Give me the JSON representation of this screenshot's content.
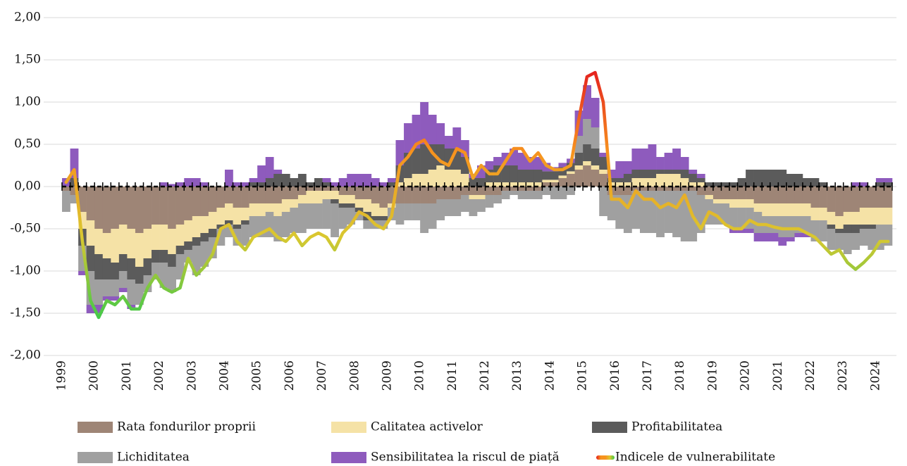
{
  "chart_data": {
    "type": "stacked-bar-line",
    "categories": [
      "1999",
      null,
      null,
      null,
      "2000",
      null,
      null,
      null,
      "2001",
      null,
      null,
      null,
      "2002",
      null,
      null,
      null,
      "2003",
      null,
      null,
      null,
      "2004",
      null,
      null,
      null,
      "2005",
      null,
      null,
      null,
      "2006",
      null,
      null,
      null,
      "2007",
      null,
      null,
      null,
      "2008",
      null,
      null,
      null,
      "2009",
      null,
      null,
      null,
      "2010",
      null,
      null,
      null,
      "2011",
      null,
      null,
      null,
      "2012",
      null,
      null,
      null,
      "2013",
      null,
      null,
      null,
      "2014",
      null,
      null,
      null,
      "2015",
      null,
      null,
      null,
      "2016",
      null,
      null,
      null,
      "2017",
      null,
      null,
      null,
      "2018",
      null,
      null,
      null,
      "2019",
      null,
      null,
      null,
      "2020",
      null,
      null,
      null,
      "2021",
      null,
      null,
      null,
      "2022",
      null,
      null,
      null,
      "2023",
      null,
      null,
      null,
      "2024",
      null
    ],
    "series": [
      {
        "name": "Rata fondurilor proprii",
        "color": "#9e8576",
        "values": [
          -0.05,
          -0.1,
          -0.3,
          -0.4,
          -0.5,
          -0.55,
          -0.5,
          -0.45,
          -0.5,
          -0.55,
          -0.5,
          -0.45,
          -0.45,
          -0.5,
          -0.45,
          -0.4,
          -0.35,
          -0.35,
          -0.3,
          -0.25,
          -0.2,
          -0.25,
          -0.25,
          -0.2,
          -0.2,
          -0.2,
          -0.2,
          -0.15,
          -0.15,
          -0.1,
          -0.05,
          -0.05,
          -0.05,
          -0.05,
          -0.1,
          -0.1,
          -0.15,
          -0.15,
          -0.2,
          -0.25,
          -0.2,
          -0.2,
          -0.2,
          -0.2,
          -0.2,
          -0.2,
          -0.15,
          -0.15,
          -0.15,
          -0.1,
          -0.1,
          -0.1,
          -0.1,
          -0.1,
          -0.05,
          -0.05,
          -0.05,
          -0.05,
          -0.05,
          0.05,
          0.05,
          0.1,
          0.15,
          0.2,
          0.25,
          0.2,
          0.15,
          -0.1,
          -0.1,
          -0.1,
          -0.05,
          -0.05,
          -0.05,
          -0.05,
          -0.05,
          -0.05,
          -0.05,
          -0.05,
          -0.1,
          -0.1,
          -0.15,
          -0.15,
          -0.15,
          -0.15,
          -0.15,
          -0.2,
          -0.2,
          -0.2,
          -0.2,
          -0.2,
          -0.2,
          -0.2,
          -0.25,
          -0.25,
          -0.3,
          -0.35,
          -0.3,
          -0.3,
          -0.25,
          -0.25,
          -0.25,
          -0.25
        ]
      },
      {
        "name": "Calitatea activelor",
        "color": "#f5e2a6",
        "values": [
          0,
          0,
          -0.2,
          -0.3,
          -0.3,
          -0.3,
          -0.4,
          -0.35,
          -0.35,
          -0.4,
          -0.35,
          -0.3,
          -0.3,
          -0.3,
          -0.25,
          -0.25,
          -0.25,
          -0.2,
          -0.2,
          -0.2,
          -0.2,
          -0.2,
          -0.15,
          -0.15,
          -0.15,
          -0.1,
          -0.15,
          -0.15,
          -0.1,
          -0.1,
          -0.15,
          -0.15,
          -0.1,
          -0.1,
          -0.1,
          -0.1,
          -0.1,
          -0.15,
          -0.15,
          -0.1,
          -0.05,
          0.05,
          0.1,
          0.15,
          0.15,
          0.2,
          0.25,
          0.2,
          0.2,
          0.15,
          -0.05,
          -0.05,
          0.05,
          0.05,
          0.05,
          0.05,
          0.05,
          0.05,
          0.05,
          0.03,
          0.03,
          0.03,
          0.03,
          0.05,
          0.05,
          0.05,
          0.05,
          0.05,
          0.05,
          0.05,
          0.1,
          0.1,
          0.1,
          0.15,
          0.15,
          0.15,
          0.1,
          0.05,
          0.05,
          -0.05,
          -0.05,
          -0.05,
          -0.1,
          -0.1,
          -0.1,
          -0.1,
          -0.15,
          -0.15,
          -0.15,
          -0.15,
          -0.15,
          -0.15,
          -0.15,
          -0.15,
          -0.15,
          -0.15,
          -0.15,
          -0.15,
          -0.2,
          -0.2,
          -0.2,
          -0.2
        ]
      },
      {
        "name": "Profitabilitatea",
        "color": "#5b5b5b",
        "values": [
          0,
          0.1,
          -0.2,
          -0.3,
          -0.3,
          -0.25,
          -0.2,
          -0.2,
          -0.25,
          -0.2,
          -0.2,
          -0.15,
          -0.15,
          -0.15,
          -0.1,
          -0.1,
          -0.1,
          -0.1,
          -0.1,
          -0.05,
          -0.05,
          -0.05,
          -0.05,
          0.05,
          0.05,
          0.1,
          0.15,
          0.15,
          0.1,
          0.15,
          0.05,
          0.1,
          0.05,
          -0.05,
          -0.05,
          -0.05,
          -0.05,
          -0.1,
          -0.05,
          -0.05,
          0.05,
          0.2,
          0.3,
          0.3,
          0.35,
          0.3,
          0.25,
          0.25,
          0.25,
          0.2,
          0.1,
          0.1,
          0.15,
          0.2,
          0.2,
          0.2,
          0.15,
          0.15,
          0.15,
          0.1,
          0.1,
          0.1,
          0.1,
          0.15,
          0.2,
          0.2,
          0.15,
          0.05,
          0.05,
          0.1,
          0.1,
          0.1,
          0.1,
          0.05,
          0.05,
          0.05,
          0.1,
          0.1,
          0.05,
          0.05,
          0.05,
          0.05,
          0.05,
          0.1,
          0.2,
          0.2,
          0.2,
          0.2,
          0.2,
          0.15,
          0.15,
          0.1,
          0.1,
          0.05,
          -0.05,
          -0.05,
          -0.1,
          -0.1,
          -0.05,
          -0.05,
          0.05,
          0.05
        ]
      },
      {
        "name": "Lichiditatea",
        "color": "#a0a0a0",
        "values": [
          -0.25,
          -0.1,
          -0.3,
          -0.4,
          -0.3,
          -0.2,
          -0.2,
          -0.2,
          -0.3,
          -0.25,
          -0.2,
          -0.2,
          -0.3,
          -0.3,
          -0.3,
          -0.15,
          -0.35,
          -0.3,
          -0.25,
          -0.2,
          -0.15,
          -0.2,
          -0.25,
          -0.25,
          -0.25,
          -0.3,
          -0.3,
          -0.3,
          -0.3,
          -0.35,
          -0.3,
          -0.3,
          -0.35,
          -0.4,
          -0.25,
          -0.2,
          -0.1,
          -0.1,
          -0.1,
          -0.1,
          -0.15,
          -0.25,
          -0.2,
          -0.2,
          -0.35,
          -0.3,
          -0.25,
          -0.2,
          -0.2,
          -0.2,
          -0.2,
          -0.15,
          -0.15,
          -0.1,
          -0.1,
          -0.05,
          -0.1,
          -0.1,
          -0.1,
          -0.1,
          -0.15,
          -0.15,
          -0.1,
          0.2,
          0.3,
          0.25,
          -0.35,
          -0.3,
          -0.4,
          -0.45,
          -0.45,
          -0.5,
          -0.5,
          -0.55,
          -0.5,
          -0.55,
          -0.6,
          -0.6,
          -0.45,
          -0.3,
          -0.25,
          -0.25,
          -0.25,
          -0.25,
          -0.25,
          -0.25,
          -0.2,
          -0.2,
          -0.25,
          -0.25,
          -0.2,
          -0.2,
          -0.25,
          -0.25,
          -0.25,
          -0.2,
          -0.25,
          -0.2,
          -0.2,
          -0.25,
          -0.3,
          -0.25
        ]
      },
      {
        "name": "Sensibilitatea la riscul de piață",
        "color": "#8e5bbd",
        "values": [
          0.1,
          0.35,
          -0.05,
          -0.1,
          -0.1,
          -0.05,
          -0.05,
          -0.05,
          -0.05,
          0,
          0,
          0,
          0.05,
          0.03,
          0.05,
          0.1,
          0.1,
          0.05,
          0,
          0,
          0.2,
          0.05,
          0.05,
          0.05,
          0.2,
          0.25,
          0.05,
          0,
          0,
          0,
          0,
          0,
          0.05,
          0.05,
          0.1,
          0.15,
          0.15,
          0.15,
          0.1,
          0.05,
          0.05,
          0.3,
          0.35,
          0.4,
          0.5,
          0.35,
          0.25,
          0.15,
          0.25,
          0.2,
          0.05,
          0.15,
          0.1,
          0.1,
          0.15,
          0.2,
          0.2,
          0.15,
          0.15,
          0.1,
          0.05,
          0.05,
          0.05,
          0.3,
          0.4,
          0.35,
          0.05,
          0.1,
          0.2,
          0.15,
          0.25,
          0.25,
          0.3,
          0.15,
          0.2,
          0.25,
          0.15,
          0.05,
          0.05,
          0,
          0,
          0,
          -0.05,
          -0.05,
          -0.05,
          -0.1,
          -0.1,
          -0.1,
          -0.1,
          -0.05,
          -0.05,
          -0.05,
          0,
          0,
          0,
          0,
          0,
          0.05,
          0.05,
          0,
          0.05,
          0.05
        ]
      }
    ],
    "line": {
      "name": "Indicele de vulnerabilitate",
      "colors": [
        "#e41e1e",
        "#f7931e",
        "#d9c830",
        "#3cc94a"
      ],
      "values": [
        0.05,
        0.2,
        -0.65,
        -1.35,
        -1.55,
        -1.35,
        -1.4,
        -1.3,
        -1.45,
        -1.45,
        -1.2,
        -1.05,
        -1.2,
        -1.25,
        -1.2,
        -0.85,
        -1.05,
        -0.95,
        -0.8,
        -0.5,
        -0.45,
        -0.65,
        -0.75,
        -0.6,
        -0.55,
        -0.5,
        -0.6,
        -0.65,
        -0.55,
        -0.7,
        -0.6,
        -0.55,
        -0.6,
        -0.75,
        -0.55,
        -0.45,
        -0.3,
        -0.35,
        -0.45,
        -0.5,
        -0.35,
        0.25,
        0.35,
        0.5,
        0.55,
        0.4,
        0.3,
        0.25,
        0.45,
        0.4,
        0.1,
        0.25,
        0.15,
        0.15,
        0.3,
        0.45,
        0.45,
        0.3,
        0.4,
        0.25,
        0.2,
        0.2,
        0.25,
        0.8,
        1.3,
        1.35,
        1.0,
        -0.15,
        -0.15,
        -0.25,
        -0.05,
        -0.15,
        -0.15,
        -0.25,
        -0.2,
        -0.25,
        -0.1,
        -0.35,
        -0.5,
        -0.3,
        -0.35,
        -0.45,
        -0.5,
        -0.5,
        -0.4,
        -0.45,
        -0.45,
        -0.48,
        -0.5,
        -0.5,
        -0.5,
        -0.55,
        -0.6,
        -0.7,
        -0.8,
        -0.75,
        -0.9,
        -0.98,
        -0.9,
        -0.8,
        -0.65,
        -0.65
      ]
    },
    "ylim": [
      -2,
      2
    ],
    "yticks": [
      {
        "value": -2,
        "label": "-2,00"
      },
      {
        "value": -1.5,
        "label": "-1,50"
      },
      {
        "value": -1,
        "label": "-1,00"
      },
      {
        "value": -0.5,
        "label": "-0,50"
      },
      {
        "value": 0,
        "label": "0,00"
      },
      {
        "value": 0.5,
        "label": "0,50"
      },
      {
        "value": 1,
        "label": "1,00"
      },
      {
        "value": 1.5,
        "label": "1,50"
      },
      {
        "value": 2,
        "label": "2,00"
      }
    ],
    "grid": true
  }
}
